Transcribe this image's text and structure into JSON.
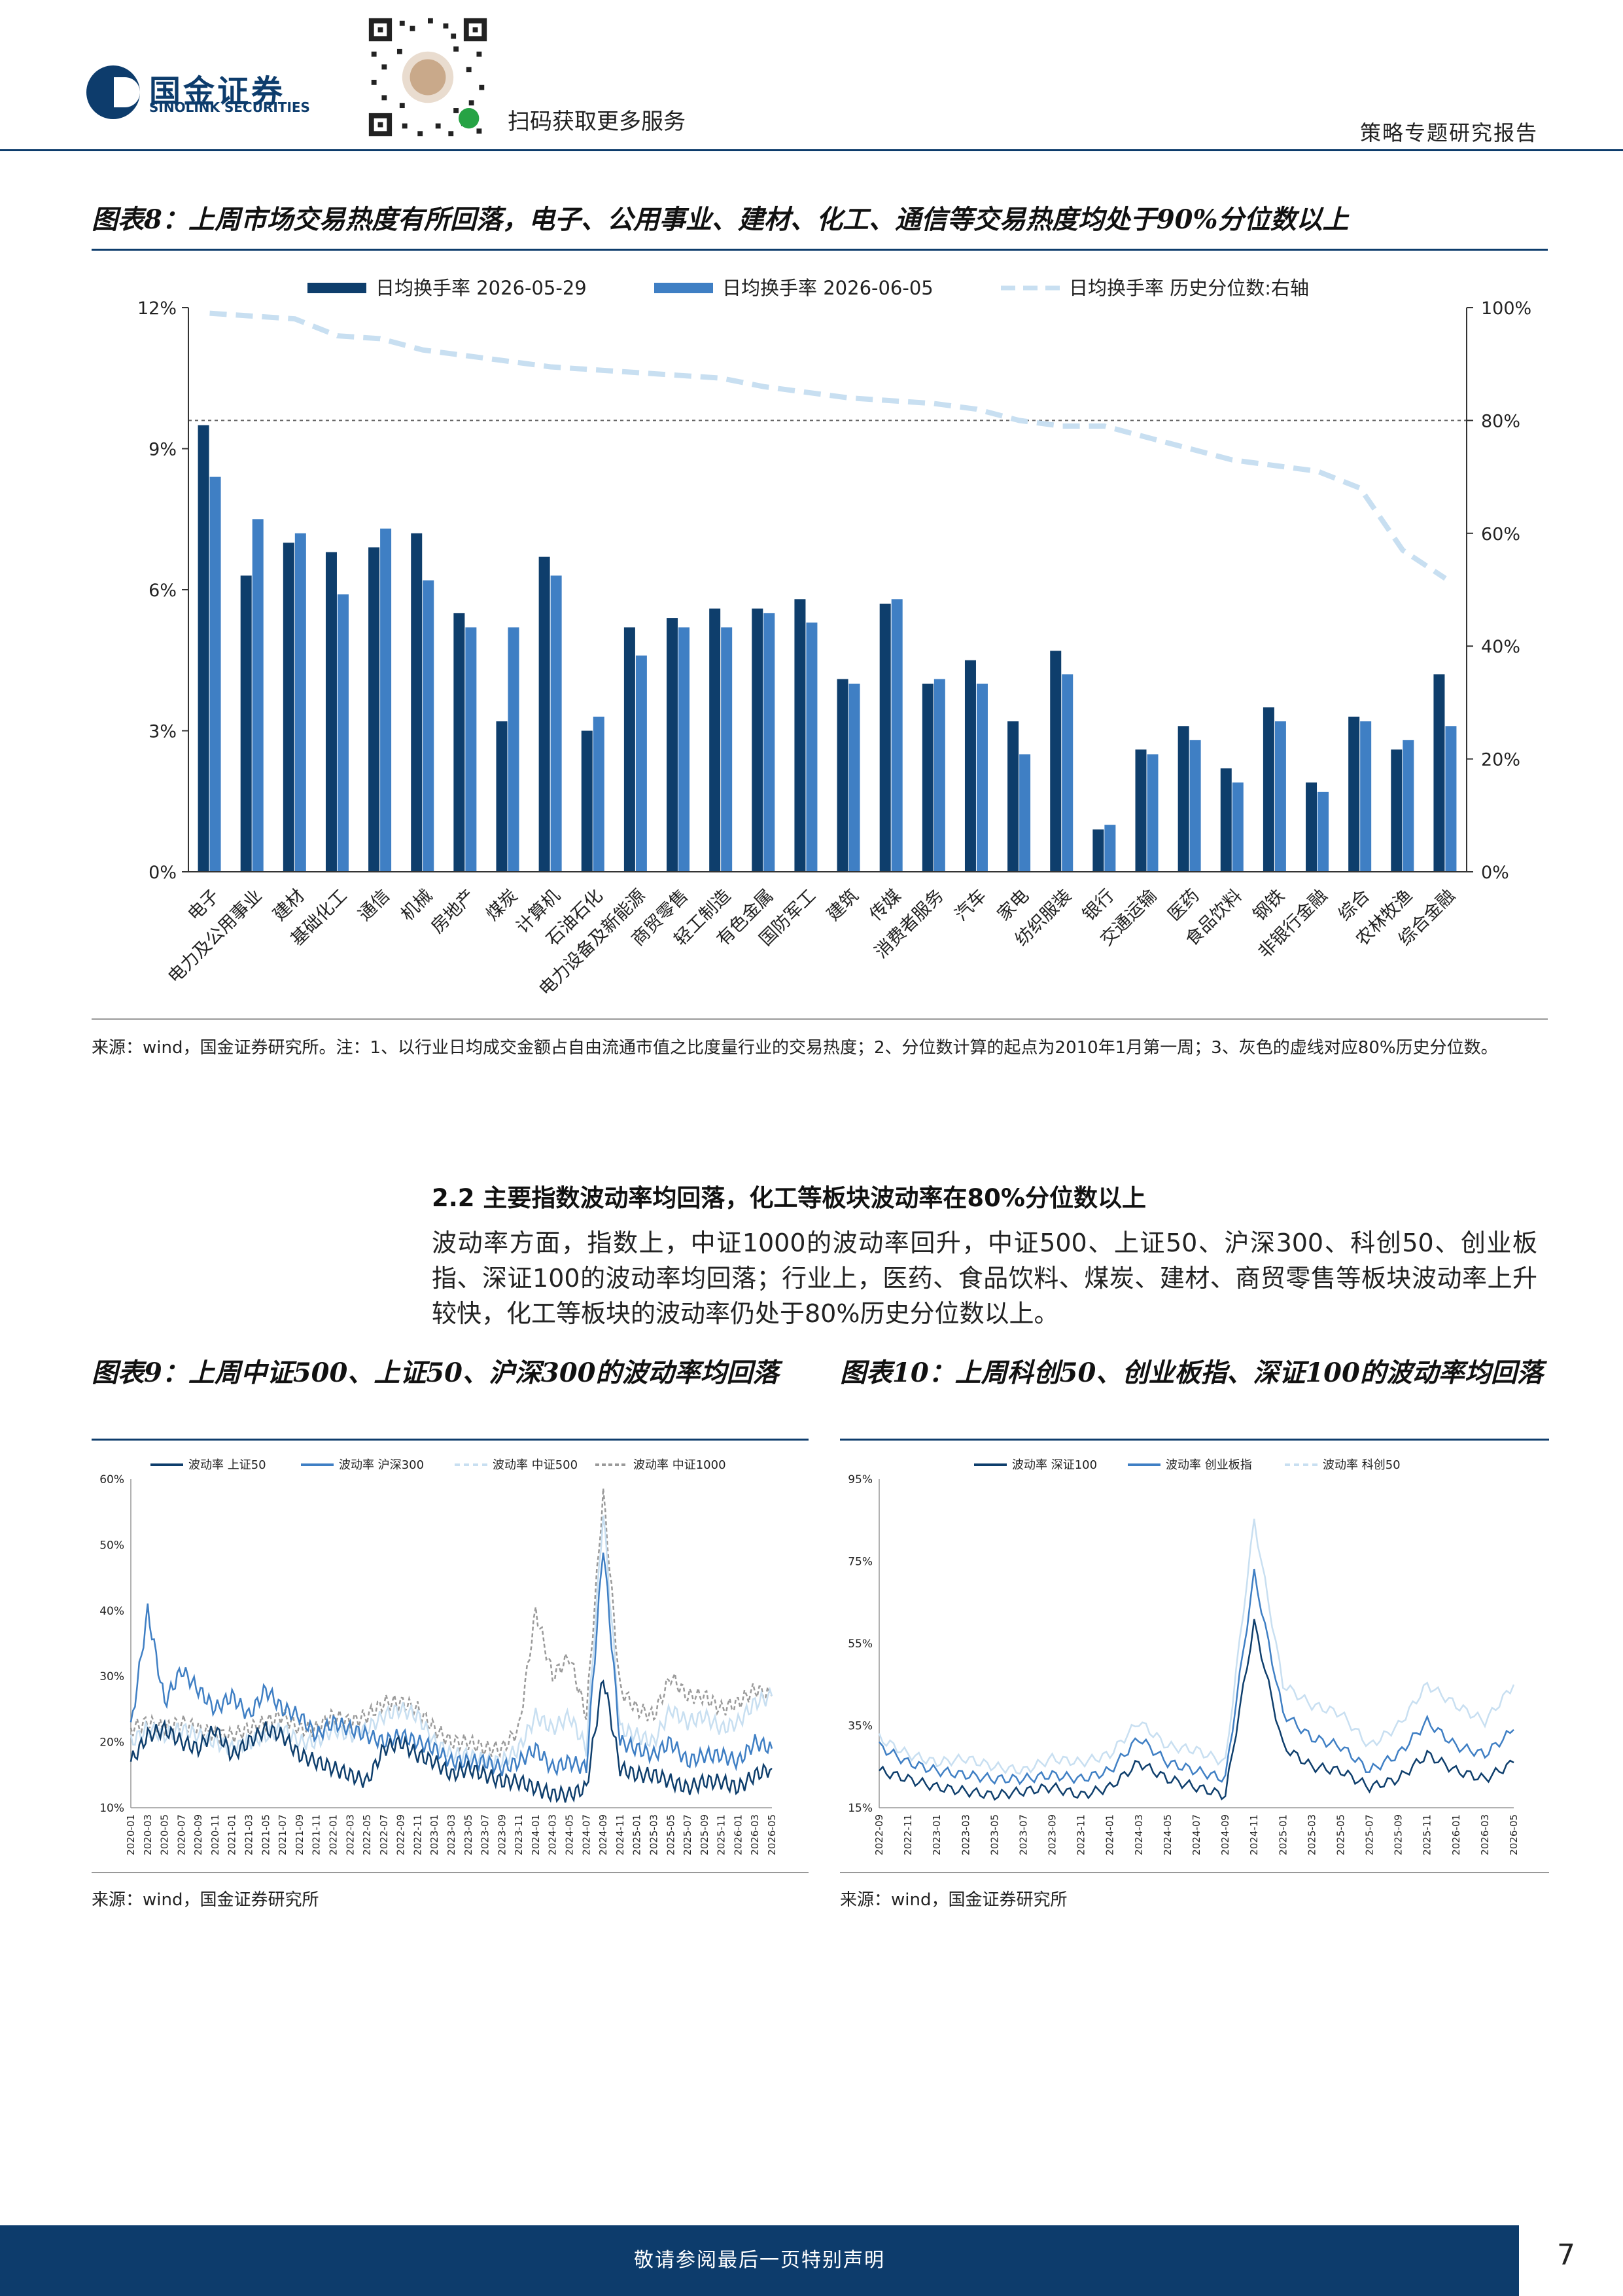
{
  "header": {
    "brand_cn": "国金证券",
    "brand_en": "SINOLINK SECURITIES",
    "qr_caption": "扫码获取更多服务",
    "report_type": "策略专题研究报告",
    "colors": {
      "brand": "#0d3c6c"
    }
  },
  "fig8": {
    "title": "图表8：上周市场交易热度有所回落，电子、公用事业、建材、化工、通信等交易热度均处于90%分位数以上",
    "source": "来源：wind，国金证券研究所。注：1、以行业日均成交金额占自由流通市值之比度量行业的交易热度；2、分位数计算的起点为2010年1月第一周；3、灰色的虚线对应80%历史分位数。"
  },
  "section": {
    "heading": "2.2 主要指数波动率均回落，化工等板块波动率在80%分位数以上",
    "paragraph": "波动率方面，指数上，中证1000的波动率回升，中证500、上证50、沪深300、科创50、创业板指、深证100的波动率均回落；行业上，医药、食品饮料、煤炭、建材、商贸零售等板块波动率上升较快，化工等板块的波动率仍处于80%历史分位数以上。"
  },
  "fig9": {
    "title": "图表9：上周中证500、上证50、沪深300的波动率均回落",
    "source": "来源：wind，国金证券研究所"
  },
  "fig10": {
    "title": "图表10：上周科创50、创业板指、深证100的波动率均回落",
    "source": "来源：wind，国金证券研究所"
  },
  "footer": {
    "notice": "敬请参阅最后一页特别声明",
    "page": "7"
  },
  "chart_data": [
    {
      "id": "fig8",
      "type": "bar",
      "categories": [
        "电子",
        "电力及公用事业",
        "建材",
        "基础化工",
        "通信",
        "机械",
        "房地产",
        "煤炭",
        "计算机",
        "石油石化",
        "电力设备及新能源",
        "商贸零售",
        "轻工制造",
        "有色金属",
        "国防军工",
        "建筑",
        "传媒",
        "消费者服务",
        "汽车",
        "家电",
        "纺织服装",
        "银行",
        "交通运输",
        "医药",
        "食品饮料",
        "钢铁",
        "非银行金融",
        "综合",
        "农林牧渔",
        "综合金融"
      ],
      "series": [
        {
          "name": "日均换手率 2026-05-29",
          "axis": "left",
          "color": "#0e3e6c",
          "values": [
            9.5,
            6.3,
            7.0,
            6.8,
            6.9,
            7.2,
            5.5,
            3.2,
            6.7,
            3.0,
            5.2,
            5.4,
            5.6,
            5.6,
            5.8,
            4.1,
            5.7,
            4.0,
            4.5,
            3.2,
            4.7,
            0.9,
            2.6,
            3.1,
            2.2,
            3.5,
            1.9,
            3.3,
            2.6,
            4.2
          ]
        },
        {
          "name": "日均换手率 2026-06-05",
          "axis": "left",
          "color": "#3f7fc4",
          "values": [
            8.4,
            7.5,
            7.2,
            5.9,
            7.3,
            6.2,
            5.2,
            5.2,
            6.3,
            3.3,
            4.6,
            5.2,
            5.2,
            5.5,
            5.3,
            4.0,
            5.8,
            4.1,
            4.0,
            2.5,
            4.2,
            1.0,
            2.5,
            2.8,
            1.9,
            3.2,
            1.7,
            3.2,
            2.8,
            3.1
          ]
        },
        {
          "name": "日均换手率 历史分位数:右轴",
          "axis": "right",
          "color": "#c8dff1",
          "style": "dashed",
          "values": [
            99,
            98.5,
            98,
            95,
            94.5,
            92.5,
            91.5,
            90.5,
            89.5,
            89,
            88.5,
            88,
            87.5,
            86,
            85,
            84,
            83.5,
            83,
            82,
            80,
            79,
            79,
            77,
            75,
            73,
            72,
            71,
            68,
            57,
            52
          ]
        }
      ],
      "ylim_left": [
        0,
        12
      ],
      "yticks_left": [
        "0%",
        "3%",
        "6%",
        "9%",
        "12%"
      ],
      "ylim_right": [
        0,
        100
      ],
      "yticks_right": [
        "0%",
        "20%",
        "40%",
        "60%",
        "80%",
        "100%"
      ],
      "reference_line_right": 80,
      "legend": "top"
    },
    {
      "id": "fig9",
      "type": "line",
      "series_names": [
        "波动率 上证50",
        "波动率 沪深300",
        "波动率 中证500",
        "波动率 中证1000"
      ],
      "colors": [
        "#0e3e6c",
        "#3f7fc4",
        "#c8dff1",
        "#9a9a9a"
      ],
      "ylim": [
        10,
        60
      ],
      "yticks": [
        "10%",
        "20%",
        "30%",
        "40%",
        "50%",
        "60%"
      ],
      "xticks": [
        "2020-01",
        "2020-03",
        "2020-05",
        "2020-07",
        "2020-09",
        "2020-11",
        "2021-01",
        "2021-03",
        "2021-05",
        "2021-07",
        "2021-09",
        "2021-11",
        "2022-01",
        "2022-03",
        "2022-05",
        "2022-07",
        "2022-09",
        "2022-11",
        "2023-01",
        "2023-03",
        "2023-05",
        "2023-07",
        "2023-09",
        "2023-11",
        "2024-01",
        "2024-03",
        "2024-05",
        "2024-07",
        "2024-09",
        "2024-11",
        "2025-01",
        "2025-03",
        "2025-05",
        "2025-07",
        "2025-09",
        "2025-11",
        "2026-01",
        "2026-03",
        "2026-05"
      ],
      "approx_points": [
        [
          17,
          21,
          22,
          20,
          19,
          22,
          18,
          20,
          22,
          21,
          18,
          17,
          16,
          15,
          14,
          19,
          20,
          18,
          17,
          15,
          16,
          15,
          14,
          14,
          13,
          12,
          12,
          13,
          30,
          16,
          15,
          15,
          14,
          13,
          14,
          14,
          13,
          15,
          16
        ],
        [
          22,
          40,
          26,
          31,
          28,
          25,
          27,
          24,
          28,
          25,
          24,
          21,
          23,
          22,
          21,
          20,
          21,
          20,
          19,
          17,
          17,
          17,
          16,
          17,
          19,
          16,
          17,
          16,
          50,
          20,
          19,
          18,
          20,
          17,
          18,
          18,
          17,
          20,
          19
        ],
        [
          20,
          22,
          21,
          22,
          21,
          20,
          19,
          20,
          21,
          22,
          20,
          20,
          22,
          21,
          22,
          24,
          25,
          24,
          20,
          18,
          18,
          17,
          17,
          19,
          24,
          22,
          24,
          19,
          55,
          22,
          21,
          20,
          25,
          23,
          24,
          22,
          23,
          26,
          27
        ],
        [
          22,
          23,
          22,
          23,
          22,
          21,
          21,
          22,
          23,
          24,
          22,
          22,
          24,
          23,
          24,
          26,
          26,
          25,
          22,
          20,
          20,
          19,
          19,
          22,
          40,
          30,
          33,
          24,
          58,
          28,
          25,
          24,
          30,
          27,
          27,
          25,
          26,
          28,
          27
        ]
      ],
      "legend": "top"
    },
    {
      "id": "fig10",
      "type": "line",
      "series_names": [
        "波动率 深证100",
        "波动率 创业板指",
        "波动率 科创50"
      ],
      "colors": [
        "#0e3e6c",
        "#3f7fc4",
        "#c8dff1"
      ],
      "ylim": [
        15,
        95
      ],
      "yticks": [
        "15%",
        "35%",
        "55%",
        "75%",
        "95%"
      ],
      "xticks": [
        "2022-09",
        "2022-11",
        "2023-01",
        "2023-03",
        "2023-05",
        "2023-07",
        "2023-09",
        "2023-11",
        "2024-01",
        "2024-03",
        "2024-05",
        "2024-07",
        "2024-09",
        "2024-11",
        "2025-01",
        "2025-03",
        "2025-05",
        "2025-07",
        "2025-09",
        "2025-11",
        "2026-01",
        "2026-03",
        "2026-05"
      ],
      "approx_points": [
        [
          24,
          22,
          20,
          19,
          18,
          19,
          20,
          18,
          20,
          26,
          22,
          20,
          18,
          60,
          30,
          25,
          24,
          20,
          22,
          28,
          24,
          22,
          26
        ],
        [
          30,
          26,
          24,
          23,
          22,
          22,
          23,
          22,
          24,
          32,
          26,
          24,
          22,
          72,
          38,
          32,
          30,
          24,
          28,
          36,
          30,
          28,
          34
        ],
        [
          32,
          28,
          26,
          27,
          25,
          24,
          27,
          26,
          28,
          36,
          30,
          29,
          26,
          85,
          45,
          40,
          38,
          30,
          35,
          45,
          40,
          36,
          45
        ]
      ],
      "legend": "top"
    }
  ]
}
